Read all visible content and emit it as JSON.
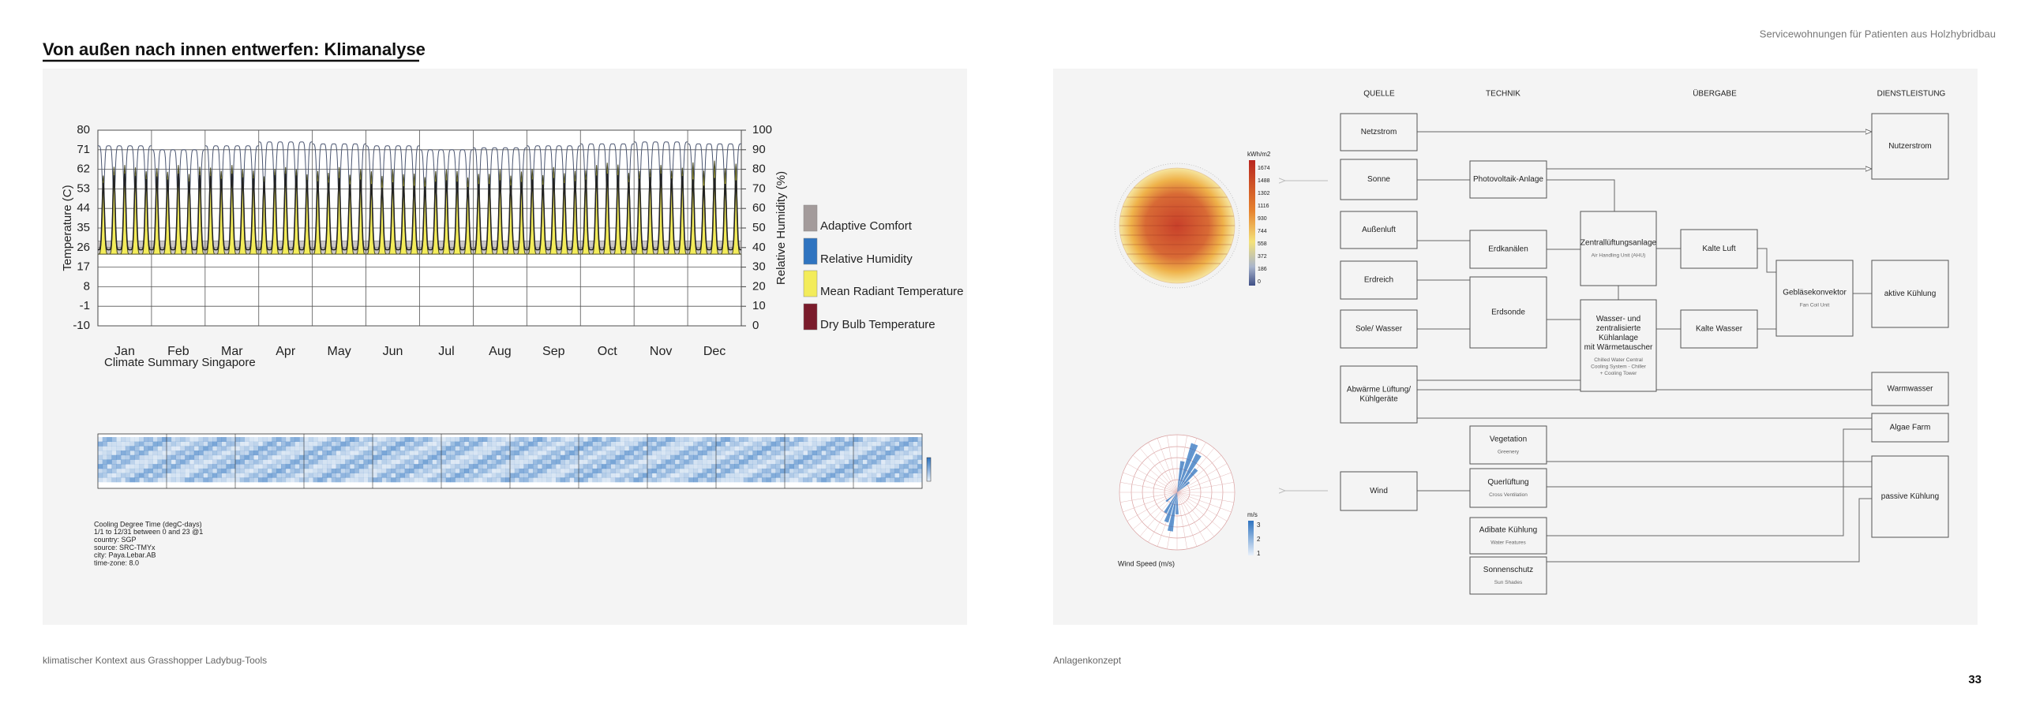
{
  "header": {
    "title": "Von außen nach innen entwerfen:  Klimanalyse",
    "project": "Servicewohnungen für Patienten aus Holzhybridbau"
  },
  "climate_chart": {
    "type": "line",
    "title": "Climate Summary Singapore",
    "ylabel": "Temperature (C)",
    "y2label": "Relative Humidity (%)",
    "categories": [
      "Jan",
      "Feb",
      "Mar",
      "Apr",
      "May",
      "Jun",
      "Jul",
      "Aug",
      "Sep",
      "Oct",
      "Nov",
      "Dec"
    ],
    "ylim": [
      -10,
      80
    ],
    "yticks": [
      -10,
      -1,
      8,
      17,
      26,
      35,
      44,
      53,
      62,
      71,
      80
    ],
    "y2lim": [
      0,
      100
    ],
    "y2ticks": [
      0,
      10,
      20,
      30,
      40,
      50,
      60,
      70,
      80,
      90,
      100
    ],
    "grid": true,
    "series": [
      {
        "name": "Adaptive Comfort",
        "color": "#a39b9b",
        "values": [
          29,
          29,
          29,
          29,
          29,
          29,
          29,
          29,
          29,
          29,
          29,
          29
        ],
        "lows": [
          23,
          23,
          23,
          23,
          23,
          23,
          23,
          23,
          23,
          23,
          23,
          23
        ]
      },
      {
        "name": "Relative Humidity",
        "color": "#2f74c0",
        "line_color": "#4a5570",
        "axis": "y2",
        "values": [
          92,
          90,
          92,
          94,
          93,
          92,
          90,
          91,
          92,
          93,
          94,
          93
        ],
        "lows": [
          62,
          58,
          60,
          64,
          62,
          62,
          60,
          60,
          62,
          64,
          66,
          64
        ]
      },
      {
        "name": "Mean Radiant Temperature",
        "color": "#f3ec5a",
        "line_color": "#4a4a20",
        "values": [
          64,
          64,
          64,
          63,
          63,
          62,
          62,
          62,
          63,
          65,
          64,
          66
        ],
        "lows": [
          23,
          23,
          23,
          23,
          23,
          23,
          23,
          23,
          23,
          23,
          23,
          23
        ]
      },
      {
        "name": "Dry Bulb Temperature",
        "color": "#7a1b2b",
        "line_color": "#222222",
        "values": [
          60,
          60,
          60,
          60,
          58,
          56,
          57,
          57,
          58,
          60,
          60,
          58
        ],
        "lows": [
          25,
          25,
          25,
          25,
          25,
          25,
          25,
          25,
          25,
          25,
          25,
          25
        ]
      }
    ]
  },
  "heatmap_info": {
    "lines": [
      "Cooling Degree Time (degC-days)",
      "1/1 to 12/31 between 0 and 23 @1",
      "country: SGP",
      "source: SRC-TMYx",
      "city: Paya.Lebar.AB",
      "time-zone: 8.0"
    ]
  },
  "solar": {
    "unit": "kWh/m2",
    "ticks": [
      1674,
      1488,
      1302,
      1116,
      930,
      744,
      558,
      372,
      186,
      0
    ]
  },
  "wind": {
    "label": "Wind Speed (m/s)",
    "unit": "m/s",
    "ticks": [
      3,
      2,
      1
    ]
  },
  "diagram": {
    "columns": [
      "QUELLE",
      "TECHNIK",
      "ÜBERGABE",
      "DIENSTLEISTUNG"
    ],
    "nodes": [
      {
        "lines": [
          "Netzstrom"
        ]
      },
      {
        "lines": [
          "Sonne"
        ]
      },
      {
        "lines": [
          "Außenluft"
        ]
      },
      {
        "lines": [
          "Erdreich"
        ]
      },
      {
        "lines": [
          "Sole/ Wasser"
        ]
      },
      {
        "lines": [
          "Abwärme Lüftung/",
          "Kühlgeräte"
        ]
      },
      {
        "lines": [
          "Wind"
        ]
      },
      {
        "lines": [
          "Photovoltaik-Anlage"
        ]
      },
      {
        "lines": [
          "Erdkanälen"
        ]
      },
      {
        "lines": [
          "Erdsonde"
        ]
      },
      {
        "lines": [
          "Vegetation"
        ],
        "sublines": [
          "Greenery"
        ]
      },
      {
        "lines": [
          "Querlüftung"
        ],
        "sublines": [
          "Cross Ventilation"
        ]
      },
      {
        "lines": [
          "Adibate Kühlung"
        ],
        "sublines": [
          "Water Features"
        ]
      },
      {
        "lines": [
          "Sonnenschutz"
        ],
        "sublines": [
          "Sun Shades"
        ]
      },
      {
        "lines": [
          "Zentrallüftungsanlage"
        ],
        "sublines": [
          "Air Handling Unit (AHU)"
        ]
      },
      {
        "lines": [
          "Wasser- und",
          "zentralisierte",
          "Kühlanlage",
          "mit Wärmetauscher"
        ],
        "sublines": [
          "Chilled Water Central",
          "Cooling System - Chiller",
          "+ Cooling Tower"
        ]
      },
      {
        "lines": [
          "Kalte Luft"
        ]
      },
      {
        "lines": [
          "Kalte Wasser"
        ]
      },
      {
        "lines": [
          "Gebläsekonvektor"
        ],
        "sublines": [
          "Fan Coil Unit"
        ]
      },
      {
        "lines": [
          "Nutzerstrom"
        ]
      },
      {
        "lines": [
          "aktive Kühlung"
        ]
      },
      {
        "lines": [
          "Warmwasser"
        ]
      },
      {
        "lines": [
          "Algae Farm"
        ]
      },
      {
        "lines": [
          "passive Kühlung"
        ]
      }
    ]
  },
  "captions": {
    "left": "klimatischer Kontext aus Grasshopper Ladybug-Tools",
    "right": "Anlagenkonzept"
  },
  "page_number": "33"
}
